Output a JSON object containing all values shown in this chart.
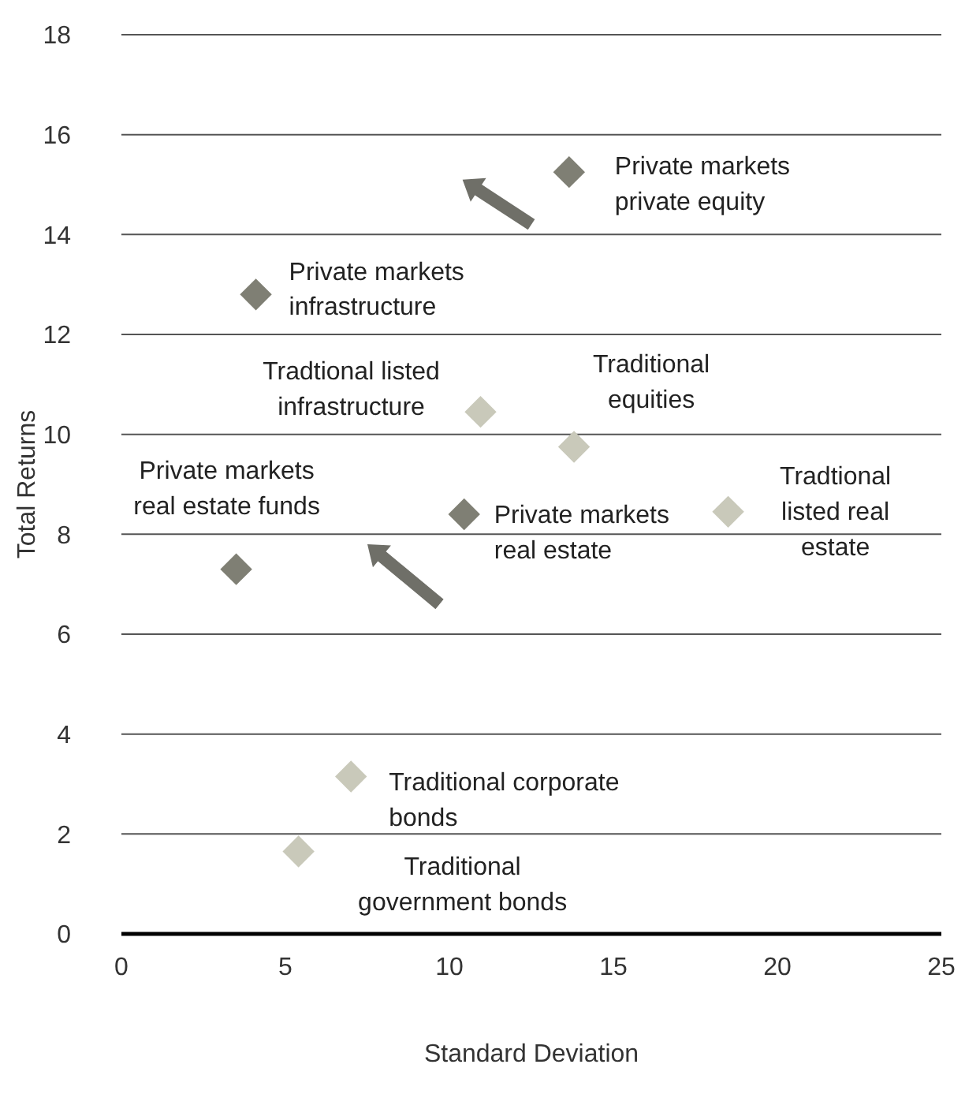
{
  "chart_data": {
    "type": "scatter",
    "xlabel": "Standard Deviation",
    "ylabel": "Total Returns",
    "xlim": [
      0,
      25
    ],
    "xticks": [
      0,
      5,
      10,
      15,
      20,
      25
    ],
    "ylim": [
      0,
      18
    ],
    "yticks": [
      0,
      2,
      4,
      6,
      8,
      10,
      12,
      14,
      16,
      18
    ],
    "grid": "y",
    "marker": "diamond",
    "series": [
      {
        "color": "#7f7f74",
        "x": [
          13.65,
          4.1,
          10.45,
          3.5
        ],
        "values": [
          15.25,
          12.8,
          8.4,
          7.3
        ]
      },
      {
        "color": "#c9c9ba",
        "x": [
          10.95,
          13.8,
          18.5,
          7.0,
          5.4
        ],
        "values": [
          10.45,
          9.75,
          8.45,
          3.15,
          1.65
        ]
      }
    ],
    "annotations": [
      {
        "text": "Private markets\nprivate equity",
        "x": 13.65,
        "y": 15.25
      },
      {
        "text": "Private markets\ninfrastructure",
        "x": 4.1,
        "y": 12.8
      },
      {
        "text": "Tradtional listed\ninfrastructure",
        "x": 10.95,
        "y": 10.45
      },
      {
        "text": "Traditional\nequities",
        "x": 13.8,
        "y": 9.75
      },
      {
        "text": "Private markets\nreal estate",
        "x": 10.45,
        "y": 8.4
      },
      {
        "text": "Tradtional\nlisted real\nestate",
        "x": 18.5,
        "y": 8.45
      },
      {
        "text": "Private markets\nreal estate funds",
        "x": 3.5,
        "y": 7.3
      },
      {
        "text": "Traditional corporate\nbonds",
        "x": 7.0,
        "y": 3.15
      },
      {
        "text": "Traditional\ngovernment bonds",
        "x": 5.4,
        "y": 1.65
      }
    ]
  }
}
